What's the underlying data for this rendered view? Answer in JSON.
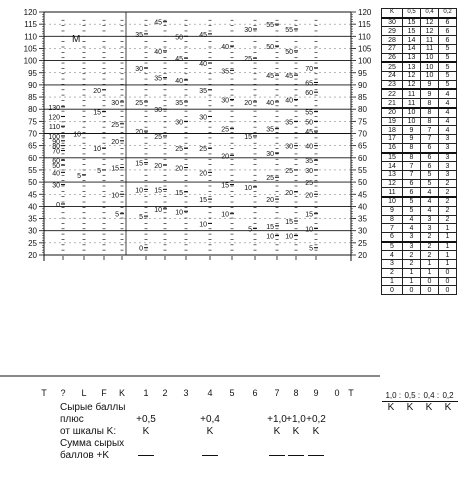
{
  "scale_marks": [
    "120",
    "115",
    "110",
    "105",
    "100",
    "95",
    "90",
    "85",
    "80",
    "75",
    "70",
    "65",
    "60",
    "55",
    "50",
    "45",
    "40",
    "35",
    "30",
    "25",
    "20"
  ],
  "scale_values": [
    120,
    115,
    110,
    105,
    100,
    95,
    90,
    85,
    80,
    75,
    70,
    65,
    60,
    55,
    50,
    45,
    40,
    35,
    30,
    25,
    20
  ],
  "profile_letter": "М",
  "columns": [
    {
      "key": "t",
      "label": "T"
    },
    {
      "key": "q",
      "label": "?"
    },
    {
      "key": "l",
      "label": "L"
    },
    {
      "key": "f",
      "label": "F"
    },
    {
      "key": "k",
      "label": "K"
    },
    {
      "key": "s1",
      "label": "1"
    },
    {
      "key": "s2",
      "label": "2"
    },
    {
      "key": "s3",
      "label": "3"
    },
    {
      "key": "s4",
      "label": "4"
    },
    {
      "key": "s5",
      "label": "5"
    },
    {
      "key": "s6",
      "label": "6"
    },
    {
      "key": "s7",
      "label": "7"
    },
    {
      "key": "s8",
      "label": "8"
    },
    {
      "key": "s9",
      "label": "9"
    },
    {
      "key": "s0",
      "label": "0"
    },
    {
      "key": "t2",
      "label": "T"
    }
  ],
  "raw_scores": [
    {
      "col": "q",
      "marks": [
        {
          "v": "130",
          "t": 81
        },
        {
          "v": "120",
          "t": 77
        },
        {
          "v": "110",
          "t": 73
        },
        {
          "v": "100",
          "t": 69
        },
        {
          "v": "90",
          "t": 67
        },
        {
          "v": "80",
          "t": 65
        },
        {
          "v": "70",
          "t": 63
        },
        {
          "v": "60",
          "t": 59
        },
        {
          "v": "50",
          "t": 57
        },
        {
          "v": "40",
          "t": 54
        },
        {
          "v": "30",
          "t": 49
        },
        {
          "v": "0",
          "t": 41
        }
      ]
    },
    {
      "col": "l",
      "marks": [
        {
          "v": "10",
          "t": 70
        },
        {
          "v": "5",
          "t": 53
        }
      ]
    },
    {
      "col": "f",
      "marks": [
        {
          "v": "20",
          "t": 88
        },
        {
          "v": "15",
          "t": 79
        },
        {
          "v": "10",
          "t": 64
        },
        {
          "v": "5",
          "t": 55
        }
      ]
    },
    {
      "col": "k",
      "marks": [
        {
          "v": "30",
          "t": 83
        },
        {
          "v": "25",
          "t": 74
        },
        {
          "v": "20",
          "t": 67
        },
        {
          "v": "15",
          "t": 56
        },
        {
          "v": "10",
          "t": 45
        },
        {
          "v": "5",
          "t": 37
        }
      ]
    },
    {
      "col": "s1",
      "marks": [
        {
          "v": "35",
          "t": 111
        },
        {
          "v": "30",
          "t": 97
        },
        {
          "v": "25",
          "t": 83
        },
        {
          "v": "20",
          "t": 71
        },
        {
          "v": "15",
          "t": 58
        },
        {
          "v": "10",
          "t": 47
        },
        {
          "v": "5",
          "t": 36
        },
        {
          "v": "0",
          "t": 23
        }
      ]
    },
    {
      "col": "s2",
      "marks": [
        {
          "v": "45",
          "t": 116
        },
        {
          "v": "40",
          "t": 104
        },
        {
          "v": "35",
          "t": 93
        },
        {
          "v": "30",
          "t": 80
        },
        {
          "v": "25",
          "t": 69
        },
        {
          "v": "20",
          "t": 57
        },
        {
          "v": "15",
          "t": 47
        },
        {
          "v": "10",
          "t": 39
        }
      ]
    },
    {
      "col": "s3",
      "marks": [
        {
          "v": "50",
          "t": 110
        },
        {
          "v": "45",
          "t": 101
        },
        {
          "v": "40",
          "t": 92
        },
        {
          "v": "35",
          "t": 83
        },
        {
          "v": "30",
          "t": 75
        },
        {
          "v": "25",
          "t": 64
        },
        {
          "v": "20",
          "t": 56
        },
        {
          "v": "15",
          "t": 46
        },
        {
          "v": "10",
          "t": 38
        }
      ]
    },
    {
      "col": "s4",
      "marks": [
        {
          "v": "45",
          "t": 111
        },
        {
          "v": "40",
          "t": 99
        },
        {
          "v": "35",
          "t": 88
        },
        {
          "v": "30",
          "t": 77
        },
        {
          "v": "25",
          "t": 64
        },
        {
          "v": "20",
          "t": 54
        },
        {
          "v": "15",
          "t": 43
        },
        {
          "v": "10",
          "t": 33
        }
      ]
    },
    {
      "col": "s5",
      "marks": [
        {
          "v": "40",
          "t": 106
        },
        {
          "v": "35",
          "t": 96
        },
        {
          "v": "30",
          "t": 84
        },
        {
          "v": "25",
          "t": 72
        },
        {
          "v": "20",
          "t": 61
        },
        {
          "v": "15",
          "t": 49
        },
        {
          "v": "10",
          "t": 37
        }
      ]
    },
    {
      "col": "s6",
      "marks": [
        {
          "v": "30",
          "t": 113
        },
        {
          "v": "25",
          "t": 101
        },
        {
          "v": "20",
          "t": 83
        },
        {
          "v": "15",
          "t": 69
        },
        {
          "v": "10",
          "t": 48
        },
        {
          "v": "5",
          "t": 31
        }
      ]
    },
    {
      "col": "s7",
      "marks": [
        {
          "v": "55",
          "t": 115
        },
        {
          "v": "50",
          "t": 106
        },
        {
          "v": "45",
          "t": 94
        },
        {
          "v": "40",
          "t": 83
        },
        {
          "v": "35",
          "t": 72
        },
        {
          "v": "30",
          "t": 62
        },
        {
          "v": "25",
          "t": 52
        },
        {
          "v": "20",
          "t": 43
        },
        {
          "v": "15",
          "t": 32
        },
        {
          "v": "10",
          "t": 28
        }
      ]
    },
    {
      "col": "s8",
      "marks": [
        {
          "v": "55",
          "t": 113
        },
        {
          "v": "50",
          "t": 104
        },
        {
          "v": "45",
          "t": 94
        },
        {
          "v": "40",
          "t": 84
        },
        {
          "v": "35",
          "t": 75
        },
        {
          "v": "30",
          "t": 65
        },
        {
          "v": "25",
          "t": 55
        },
        {
          "v": "20",
          "t": 46
        },
        {
          "v": "15",
          "t": 34
        },
        {
          "v": "10",
          "t": 28
        }
      ]
    },
    {
      "col": "s9",
      "marks": [
        {
          "v": "70",
          "t": 97
        },
        {
          "v": "65",
          "t": 91
        },
        {
          "v": "60",
          "t": 87
        },
        {
          "v": "55",
          "t": 79
        },
        {
          "v": "50",
          "t": 75
        },
        {
          "v": "45",
          "t": 71
        },
        {
          "v": "40",
          "t": 65
        },
        {
          "v": "35",
          "t": 59
        },
        {
          "v": "30",
          "t": 55
        },
        {
          "v": "25",
          "t": 50
        },
        {
          "v": "20",
          "t": 45
        },
        {
          "v": "15",
          "t": 37
        },
        {
          "v": "10",
          "t": 31
        },
        {
          "v": "5",
          "t": 23
        }
      ]
    }
  ],
  "k_table": {
    "headers": [
      "K",
      "0,5",
      "0,4",
      "0,2"
    ],
    "groups": [
      [
        [
          "30",
          "15",
          "12",
          "6"
        ],
        [
          "29",
          "15",
          "12",
          "6"
        ],
        [
          "28",
          "14",
          "11",
          "6"
        ],
        [
          "27",
          "14",
          "11",
          "5"
        ],
        [
          "26",
          "13",
          "10",
          "5"
        ]
      ],
      [
        [
          "25",
          "13",
          "10",
          "5"
        ],
        [
          "24",
          "12",
          "10",
          "5"
        ],
        [
          "23",
          "12",
          "9",
          "5"
        ]
      ],
      [
        [
          "22",
          "11",
          "9",
          "4"
        ],
        [
          "21",
          "11",
          "8",
          "4"
        ]
      ],
      [
        [
          "20",
          "10",
          "8",
          "4"
        ],
        [
          "19",
          "10",
          "8",
          "4"
        ],
        [
          "18",
          "9",
          "7",
          "4"
        ],
        [
          "17",
          "9",
          "7",
          "3"
        ],
        [
          "16",
          "8",
          "6",
          "3"
        ]
      ],
      [
        [
          "15",
          "8",
          "6",
          "3"
        ],
        [
          "14",
          "7",
          "6",
          "3"
        ],
        [
          "13",
          "7",
          "5",
          "3"
        ],
        [
          "12",
          "6",
          "5",
          "2"
        ],
        [
          "11",
          "6",
          "4",
          "2"
        ]
      ],
      [
        [
          "10",
          "5",
          "4",
          "2"
        ],
        [
          "9",
          "5",
          "4",
          "2"
        ],
        [
          "8",
          "4",
          "3",
          "2"
        ],
        [
          "7",
          "4",
          "3",
          "1"
        ],
        [
          "6",
          "3",
          "2",
          "1"
        ]
      ],
      [
        [
          "5",
          "3",
          "2",
          "1"
        ],
        [
          "4",
          "2",
          "2",
          "1"
        ],
        [
          "3",
          "2",
          "1",
          "1"
        ],
        [
          "2",
          "1",
          "1",
          "0"
        ],
        [
          "1",
          "1",
          "0",
          "0"
        ],
        [
          "0",
          "0",
          "0",
          "0"
        ]
      ]
    ]
  },
  "fraction_row": {
    "labels": [
      "1,0",
      "0,5",
      "0,4",
      "0,2"
    ],
    "den": "K"
  },
  "footer": {
    "raw_scores_label": "Сырые баллы",
    "plus_label": "плюс",
    "from_k_label": "от шкалы K:",
    "sum_label": "Сумма сырых",
    "sum_label2": "баллов +K",
    "k_additions": [
      {
        "col": "s1",
        "value": "+0,5"
      },
      {
        "col": "s4",
        "value": "+0,4"
      },
      {
        "col": "s7",
        "value": "+1,0"
      },
      {
        "col": "s8",
        "value": "+1,0"
      },
      {
        "col": "s9",
        "value": "+0,2"
      }
    ],
    "k_letter": "K"
  }
}
